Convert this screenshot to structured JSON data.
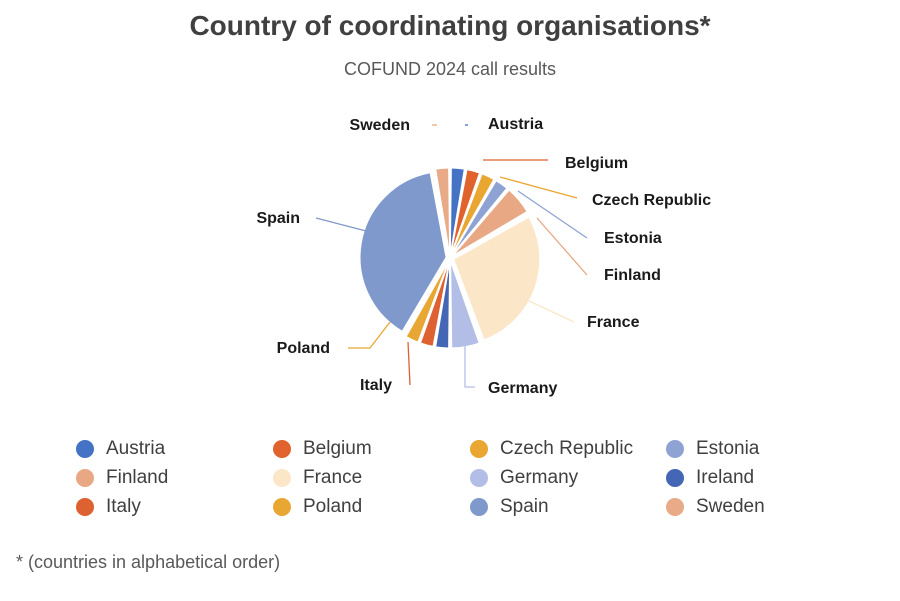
{
  "title": "Country of coordinating organisations*",
  "subtitle": "COFUND 2024 call results",
  "footnote": "* (countries in alphabetical order)",
  "chart_data": {
    "type": "pie",
    "title": "Country of coordinating organisations*",
    "subtitle": "COFUND 2024 call results",
    "legend_position": "bottom",
    "slices": [
      {
        "label": "Austria",
        "value": 1,
        "color": "#4472C4"
      },
      {
        "label": "Belgium",
        "value": 1,
        "color": "#E0622C"
      },
      {
        "label": "Czech Republic",
        "value": 1,
        "color": "#E9A630"
      },
      {
        "label": "Estonia",
        "value": 1,
        "color": "#8EA3D4"
      },
      {
        "label": "Finland",
        "value": 2,
        "color": "#E8A884"
      },
      {
        "label": "France",
        "value": 10,
        "color": "#FCE6C8"
      },
      {
        "label": "Germany",
        "value": 2,
        "color": "#B3BEE6"
      },
      {
        "label": "Ireland",
        "value": 1,
        "color": "#4466B4"
      },
      {
        "label": "Italy",
        "value": 1,
        "color": "#DD6131"
      },
      {
        "label": "Poland",
        "value": 1,
        "color": "#E8A733"
      },
      {
        "label": "Spain",
        "value": 14,
        "color": "#8099CC"
      },
      {
        "label": "Sweden",
        "value": 1,
        "color": "#E9AA87"
      }
    ]
  }
}
